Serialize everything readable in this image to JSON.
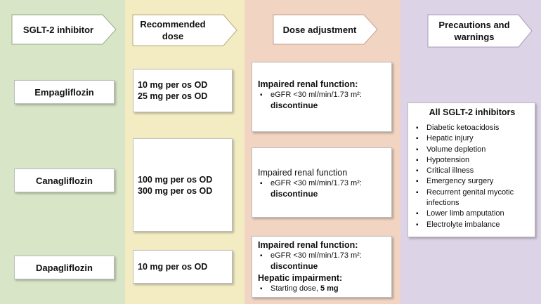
{
  "headers": {
    "col1": "SGLT-2 inhibitor",
    "col2": "Recommended dose",
    "col3": "Dose adjustment",
    "col4": "Precautions and warnings"
  },
  "drugs": [
    {
      "name": "Empagliflozin",
      "doses": [
        "10 mg per os OD",
        "25 mg per os OD"
      ],
      "adjustment": [
        {
          "label": "Impaired renal function:",
          "items": [
            {
              "text": "eGFR <30 ml/min/1.73 m²:",
              "action": "discontinue"
            }
          ]
        }
      ]
    },
    {
      "name": "Canagliflozin",
      "doses": [
        "100 mg per os OD",
        "300 mg per os OD"
      ],
      "adjustment": [
        {
          "label": "Impaired renal function",
          "items": [
            {
              "text": "eGFR <30 ml/min/1.73 m²:",
              "action": "discontinue"
            }
          ]
        }
      ]
    },
    {
      "name": "Dapagliflozin",
      "doses": [
        "10 mg per os OD"
      ],
      "adjustment": [
        {
          "label": "Impaired renal function:",
          "items": [
            {
              "text": "eGFR <30 ml/min/1.73 m²:",
              "action": "discontinue"
            }
          ]
        },
        {
          "label": "Hepatic impairment:",
          "items": [
            {
              "text": "Starting dose,",
              "action": "5 mg"
            }
          ]
        }
      ]
    }
  ],
  "precautions": {
    "title": "All SGLT-2 inhibitors",
    "items": [
      "Diabetic ketoacidosis",
      "Hepatic injury",
      "Volume depletion",
      "Hypotension",
      "Critical illness",
      "Emergency surgery",
      "Recurrent genital mycotic infections",
      "Lower limb amputation",
      "Electrolyte imbalance"
    ]
  },
  "colors": {
    "col1_bg": "#d8e5c6",
    "col2_bg": "#f3ecc2",
    "col3_bg": "#f2d4c2",
    "col4_bg": "#ddd3e6"
  }
}
